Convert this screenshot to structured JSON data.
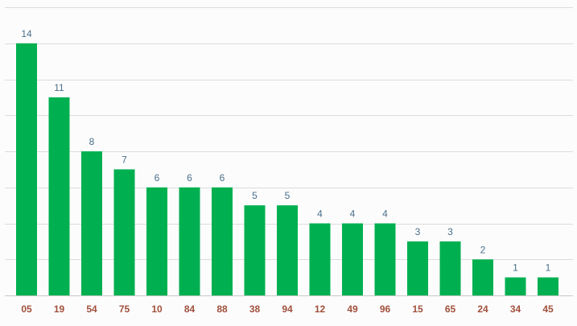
{
  "chart_data": {
    "type": "bar",
    "categories": [
      "05",
      "19",
      "54",
      "75",
      "10",
      "84",
      "88",
      "38",
      "94",
      "12",
      "49",
      "96",
      "15",
      "65",
      "24",
      "34",
      "45"
    ],
    "values": [
      14,
      11,
      8,
      7,
      6,
      6,
      6,
      5,
      5,
      4,
      4,
      4,
      3,
      3,
      2,
      1,
      1
    ],
    "title": "",
    "xlabel": "",
    "ylabel": "",
    "ylim": [
      0,
      16
    ],
    "grid": true,
    "data_labels": true,
    "colors": {
      "bar": "#00b050",
      "value_label": "#4a6f8a",
      "category_label": "#a0503c"
    }
  }
}
